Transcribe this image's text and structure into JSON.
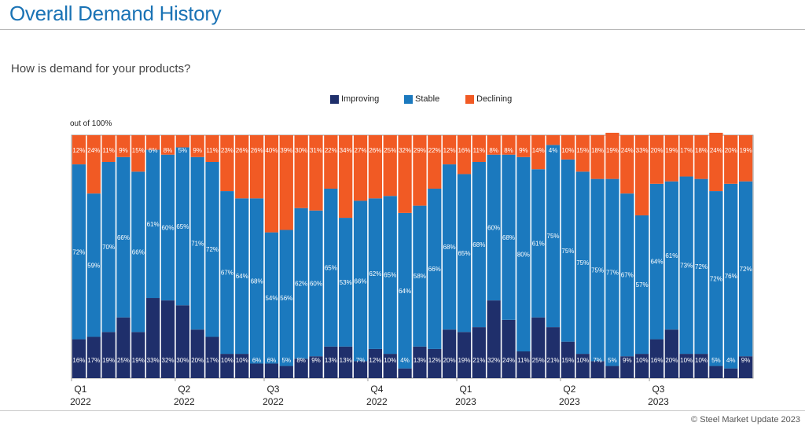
{
  "page": {
    "title": "Overall Demand History",
    "subtitle": "How is demand for your products?",
    "unit_label": "out of 100%",
    "credit": "© Steel Market Update 2023"
  },
  "colors": {
    "improving": "#1f2f6b",
    "stable": "#1b79be",
    "declining": "#f15a24",
    "title": "#1a73b5"
  },
  "chart_data": {
    "type": "bar",
    "stacked": true,
    "title": "Overall Demand History",
    "ylabel": "out of 100%",
    "ylim": [
      0,
      100
    ],
    "legend_position": "top-center",
    "series": [
      {
        "name": "Improving",
        "values": [
          16,
          17,
          19,
          25,
          19,
          33,
          32,
          30,
          20,
          17,
          10,
          10,
          6,
          6,
          5,
          8,
          9,
          13,
          13,
          7,
          12,
          10,
          4,
          13,
          12,
          20,
          19,
          21,
          32,
          24,
          11,
          25,
          21,
          15,
          10,
          7,
          5,
          9,
          10,
          16,
          20,
          10,
          10,
          5,
          4,
          9
        ]
      },
      {
        "name": "Stable",
        "values": [
          72,
          59,
          70,
          66,
          66,
          61,
          60,
          65,
          71,
          72,
          67,
          64,
          68,
          54,
          56,
          62,
          60,
          65,
          53,
          66,
          62,
          65,
          64,
          58,
          66,
          68,
          65,
          68,
          60,
          68,
          80,
          61,
          75,
          75,
          75,
          75,
          77,
          67,
          57,
          64,
          61,
          73,
          72,
          72,
          76,
          72
        ]
      },
      {
        "name": "Declining",
        "values": [
          12,
          24,
          11,
          9,
          15,
          6,
          8,
          5,
          9,
          11,
          23,
          26,
          26,
          40,
          39,
          30,
          31,
          22,
          34,
          27,
          26,
          25,
          32,
          29,
          22,
          12,
          16,
          11,
          8,
          8,
          9,
          14,
          4,
          10,
          15,
          18,
          19,
          24,
          33,
          20,
          19,
          17,
          18,
          24,
          20,
          19
        ]
      }
    ],
    "quarter_ticks": [
      {
        "quarter": "Q1",
        "year": "2022",
        "bar_index": 0
      },
      {
        "quarter": "Q2",
        "year": "2022",
        "bar_index": 7
      },
      {
        "quarter": "Q3",
        "year": "2022",
        "bar_index": 13
      },
      {
        "quarter": "Q4",
        "year": "2022",
        "bar_index": 20
      },
      {
        "quarter": "Q1",
        "year": "2023",
        "bar_index": 26
      },
      {
        "quarter": "Q2",
        "year": "2023",
        "bar_index": 33
      },
      {
        "quarter": "Q3",
        "year": "2023",
        "bar_index": 39
      }
    ]
  }
}
